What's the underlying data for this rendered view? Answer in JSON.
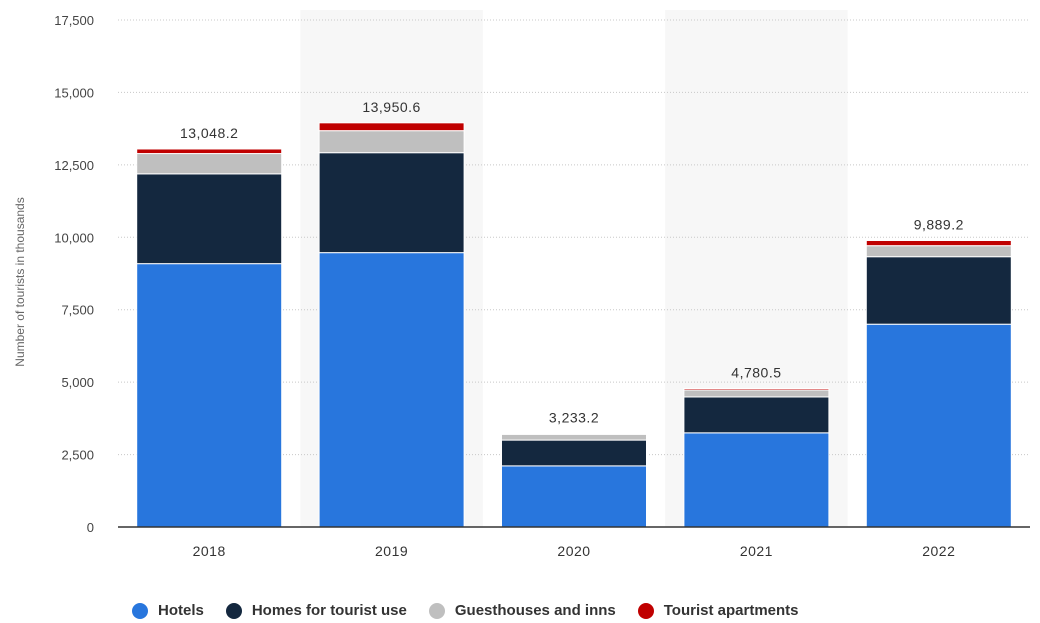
{
  "chart_data": {
    "type": "bar",
    "stacked": true,
    "categories": [
      "2018",
      "2019",
      "2020",
      "2021",
      "2022"
    ],
    "series": [
      {
        "name": "Hotels",
        "color": "#2876dd",
        "values": [
          9090,
          9470,
          2110,
          3250,
          7000
        ]
      },
      {
        "name": "Homes for tourist use",
        "color": "#14283f",
        "values": [
          3100,
          3450,
          890,
          1240,
          2330
        ]
      },
      {
        "name": "Guesthouses and inns",
        "color": "#bfbfbf",
        "values": [
          700,
          760,
          200,
          240,
          380
        ]
      },
      {
        "name": "Tourist apartments",
        "color": "#c00000",
        "values": [
          158.2,
          270.6,
          33.2,
          50.5,
          179.2
        ]
      }
    ],
    "totals": [
      "13,048.2",
      "13,950.6",
      "3,233.2",
      "4,780.5",
      "9,889.2"
    ],
    "ylabel": "Number of tourists in thousands",
    "xlabel": "",
    "ylim": [
      0,
      17500
    ],
    "yticks": [
      0,
      2500,
      5000,
      7500,
      10000,
      12500,
      15000,
      17500
    ],
    "ytick_labels": [
      "0",
      "2,500",
      "5,000",
      "7,500",
      "10,000",
      "12,500",
      "15,000",
      "17,500"
    ],
    "grid": true,
    "alternate_band_color": "#f7f7f7",
    "legend_position": "bottom"
  }
}
